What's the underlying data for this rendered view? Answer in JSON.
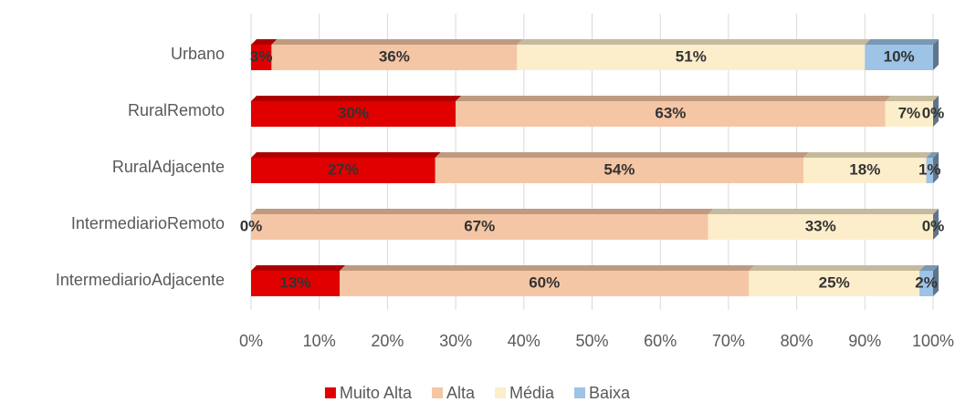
{
  "chart_data": {
    "type": "stacked_bar_horizontal",
    "categories": [
      "Urbano",
      "RuralRemoto",
      "RuralAdjacente",
      "IntermediarioRemoto",
      "IntermediarioAdjacente"
    ],
    "series": [
      {
        "name": "Muito Alta",
        "color": "#e00000",
        "values": [
          3,
          30,
          27,
          0,
          13
        ],
        "value_labels": [
          "3%",
          "30%",
          "27%",
          "0%",
          "13%"
        ]
      },
      {
        "name": "Alta",
        "color": "#f5c6a5",
        "values": [
          36,
          63,
          54,
          67,
          60
        ],
        "value_labels": [
          "36%",
          "63%",
          "54%",
          "67%",
          "60%"
        ]
      },
      {
        "name": "Média",
        "color": "#fdeecb",
        "values": [
          51,
          7,
          18,
          33,
          25
        ],
        "value_labels": [
          "51%",
          "7%",
          "18%",
          "33%",
          "25%"
        ]
      },
      {
        "name": "Baixa",
        "color": "#9dc3e6",
        "values": [
          10,
          0,
          1,
          0,
          2
        ],
        "value_labels": [
          "10%",
          "0%",
          "1%",
          "0%",
          "2%"
        ]
      }
    ],
    "xlim": [
      0,
      100
    ],
    "xticks": [
      {
        "value": 0,
        "label": "0%"
      },
      {
        "value": 10,
        "label": "10%"
      },
      {
        "value": 20,
        "label": "20%"
      },
      {
        "value": 30,
        "label": "30%"
      },
      {
        "value": 40,
        "label": "40%"
      },
      {
        "value": 50,
        "label": "50%"
      },
      {
        "value": 60,
        "label": "60%"
      },
      {
        "value": 70,
        "label": "70%"
      },
      {
        "value": 80,
        "label": "80%"
      },
      {
        "value": 90,
        "label": "90%"
      },
      {
        "value": 100,
        "label": "100%"
      }
    ],
    "grid": true,
    "legend": "bottom"
  }
}
